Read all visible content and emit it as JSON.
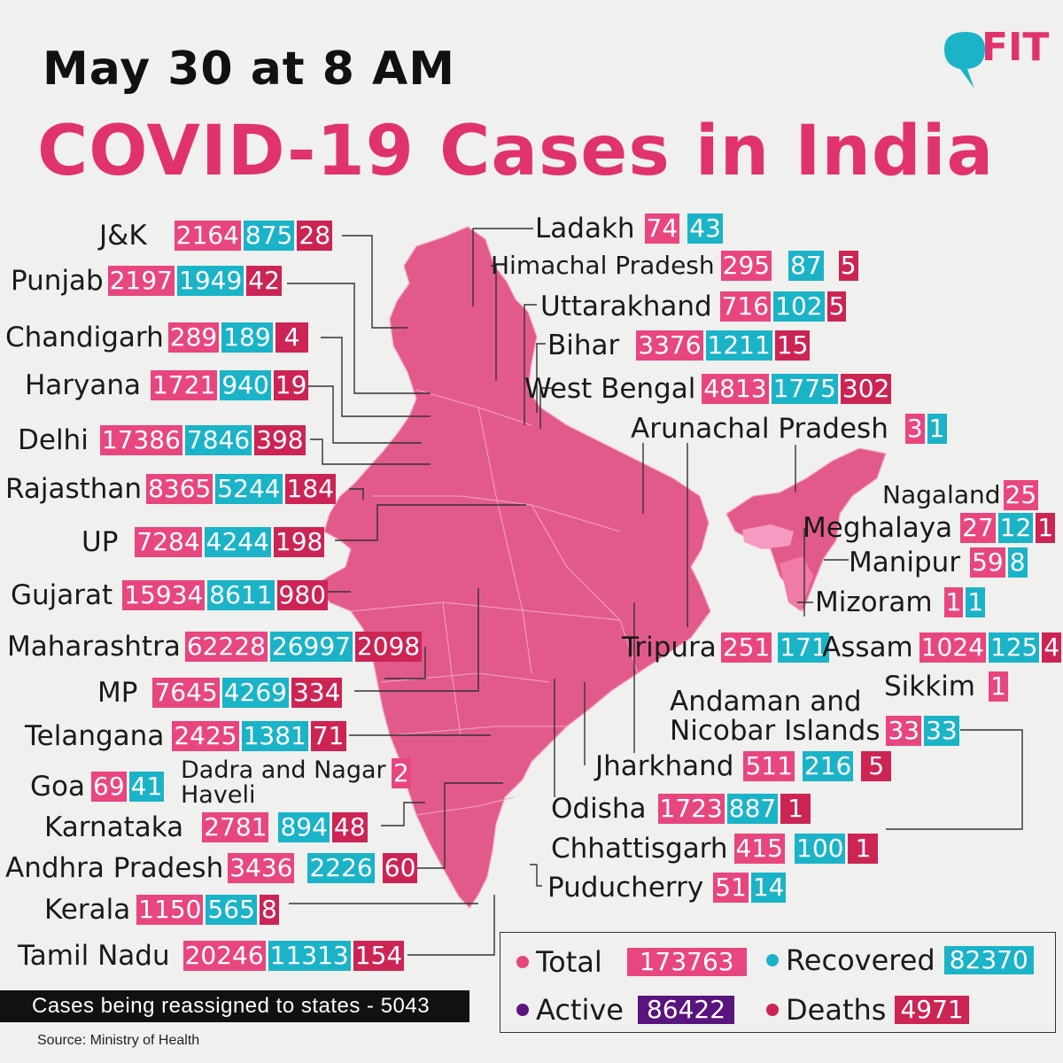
{
  "header": {
    "dateline": "May 30 at 8 AM",
    "title": "COVID-19 Cases in India",
    "logo_text": "FIT"
  },
  "colors": {
    "total": "#e8467f",
    "recovered": "#1bb3c8",
    "active": "#5a147e",
    "deaths": "#cc2455",
    "map_fill": "#e25a8c",
    "northeast_fill": "#f07aa8",
    "title": "#e0336d"
  },
  "states": {
    "jk": {
      "name": "J&K",
      "total": "2164",
      "recovered": "875",
      "deaths": "28"
    },
    "punjab": {
      "name": "Punjab",
      "total": "2197",
      "recovered": "1949",
      "deaths": "42"
    },
    "chandigarh": {
      "name": "Chandigarh",
      "total": "289",
      "recovered": "189",
      "deaths": "4"
    },
    "haryana": {
      "name": "Haryana",
      "total": "1721",
      "recovered": "940",
      "deaths": "19"
    },
    "delhi": {
      "name": "Delhi",
      "total": "17386",
      "recovered": "7846",
      "deaths": "398"
    },
    "rajasthan": {
      "name": "Rajasthan",
      "total": "8365",
      "recovered": "5244",
      "deaths": "184"
    },
    "up": {
      "name": "UP",
      "total": "7284",
      "recovered": "4244",
      "deaths": "198"
    },
    "gujarat": {
      "name": "Gujarat",
      "total": "15934",
      "recovered": "8611",
      "deaths": "980"
    },
    "maharashtra": {
      "name": "Maharashtra",
      "total": "62228",
      "recovered": "26997",
      "deaths": "2098"
    },
    "mp": {
      "name": "MP",
      "total": "7645",
      "recovered": "4269",
      "deaths": "334"
    },
    "telangana": {
      "name": "Telangana",
      "total": "2425",
      "recovered": "1381",
      "deaths": "71"
    },
    "goa": {
      "name": "Goa",
      "total": "69",
      "recovered": "41"
    },
    "dadra": {
      "name": "Dadra and Nagar Haveli",
      "total": "2"
    },
    "karnataka": {
      "name": "Karnataka",
      "total": "2781",
      "recovered": "894",
      "deaths": "48"
    },
    "andhra": {
      "name": "Andhra Pradesh",
      "total": "3436",
      "recovered": "2226",
      "deaths": "60"
    },
    "kerala": {
      "name": "Kerala",
      "total": "1150",
      "recovered": "565",
      "deaths": "8"
    },
    "tamilnadu": {
      "name": "Tamil Nadu",
      "total": "20246",
      "recovered": "11313",
      "deaths": "154"
    },
    "ladakh": {
      "name": "Ladakh",
      "total": "74",
      "recovered": "43"
    },
    "himachal": {
      "name": "Himachal Pradesh",
      "total": "295",
      "recovered": "87",
      "deaths": "5"
    },
    "uttarakhand": {
      "name": "Uttarakhand",
      "total": "716",
      "recovered": "102",
      "deaths": "5"
    },
    "bihar": {
      "name": "Bihar",
      "total": "3376",
      "recovered": "1211",
      "deaths": "15"
    },
    "westbengal": {
      "name": "West Bengal",
      "total": "4813",
      "recovered": "1775",
      "deaths": "302"
    },
    "arunachal": {
      "name": "Arunachal Pradesh",
      "total": "3",
      "recovered": "1"
    },
    "nagaland": {
      "name": "Nagaland",
      "total": "25"
    },
    "meghalaya": {
      "name": "Meghalaya",
      "total": "27",
      "recovered": "12",
      "deaths": "1"
    },
    "manipur": {
      "name": "Manipur",
      "total": "59",
      "recovered": "8"
    },
    "mizoram": {
      "name": "Mizoram",
      "total": "1",
      "recovered": "1"
    },
    "tripura": {
      "name": "Tripura",
      "total": "251",
      "recovered": "171"
    },
    "assam": {
      "name": "Assam",
      "total": "1024",
      "recovered": "125",
      "deaths": "4"
    },
    "sikkim": {
      "name": "Sikkim",
      "total": "1"
    },
    "andaman_line1": "Andaman and",
    "andaman_line2": "Nicobar Islands",
    "andaman": {
      "total": "33",
      "recovered": "33"
    },
    "jharkhand": {
      "name": "Jharkhand",
      "total": "511",
      "recovered": "216",
      "deaths": "5"
    },
    "odisha": {
      "name": "Odisha",
      "total": "1723",
      "recovered": "887",
      "deaths": "1"
    },
    "chhattisgarh": {
      "name": "Chhattisgarh",
      "total": "415",
      "recovered": "100",
      "deaths": "1"
    },
    "puducherry": {
      "name": "Puducherry",
      "total": "51",
      "recovered": "14"
    }
  },
  "legend": {
    "total_label": "Total",
    "total_value": "173763",
    "recovered_label": "Recovered",
    "recovered_value": "82370",
    "active_label": "Active",
    "active_value": "86422",
    "deaths_label": "Deaths",
    "deaths_value": "4971"
  },
  "footer": {
    "reassigned": "Cases being reassigned to states - 5043",
    "source": "Source: Ministry of Health"
  }
}
